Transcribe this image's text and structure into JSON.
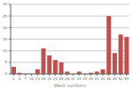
{
  "chart_data": {
    "type": "bar",
    "xlabel": "Ward numbers",
    "categories": [
      "1",
      "4",
      "7",
      "10",
      "13",
      "16",
      "19",
      "22",
      "25",
      "28",
      "31",
      "34",
      "37",
      "40",
      "41",
      "43",
      "46",
      "49",
      "52",
      "55"
    ],
    "values": [
      3,
      0.5,
      0,
      0,
      2,
      11,
      8,
      6,
      5,
      1,
      0,
      1,
      0,
      0.5,
      1,
      2,
      25,
      9,
      17,
      16
    ],
    "color": "#c0504d",
    "ylim": [
      0,
      30
    ],
    "yticks": [
      0,
      5,
      10,
      15,
      20,
      25,
      30
    ],
    "grid": true
  }
}
